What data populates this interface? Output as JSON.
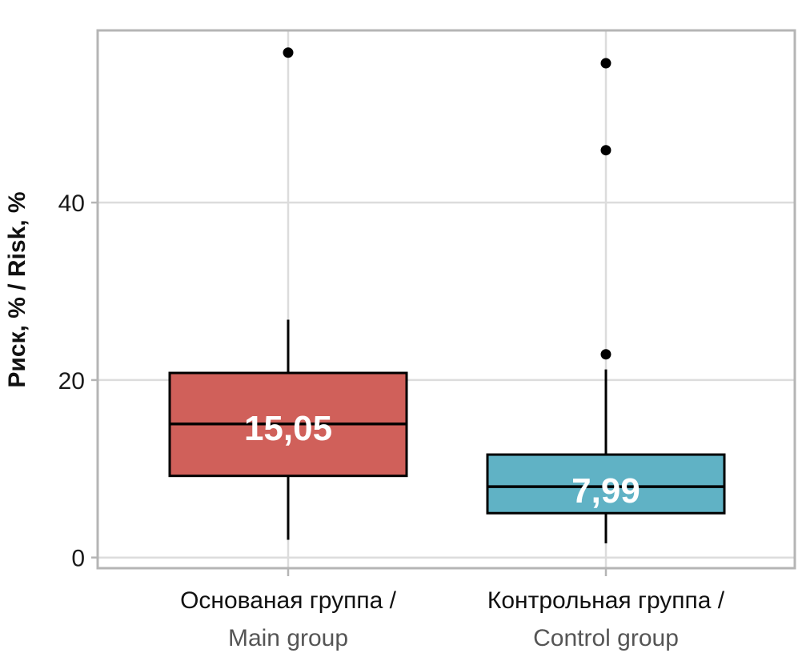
{
  "chart_data": {
    "type": "boxplot",
    "ylabel": "Риск, % / Risk, %",
    "ylim": [
      -1.2,
      59.4
    ],
    "yticks": [
      0,
      20,
      40
    ],
    "ytick_labels": [
      "0",
      "20",
      "40"
    ],
    "grid": true,
    "groups": [
      {
        "label_ru": "Основаная группа /",
        "label_en": "Main group",
        "color": "#D0605A",
        "whisker_low": 2,
        "q1": 9.2,
        "median": 15.05,
        "q3": 20.8,
        "whisker_high": 26.8,
        "outliers": [
          56.9
        ],
        "median_label": "15,05"
      },
      {
        "label_ru": "Контрольная группа /",
        "label_en": "Control group",
        "color": "#60B2C5",
        "whisker_low": 1.6,
        "q1": 5,
        "median": 7.99,
        "q3": 11.6,
        "whisker_high": 21.2,
        "outliers": [
          22.9,
          45.9,
          55.7
        ],
        "median_label": "7,99"
      }
    ]
  }
}
